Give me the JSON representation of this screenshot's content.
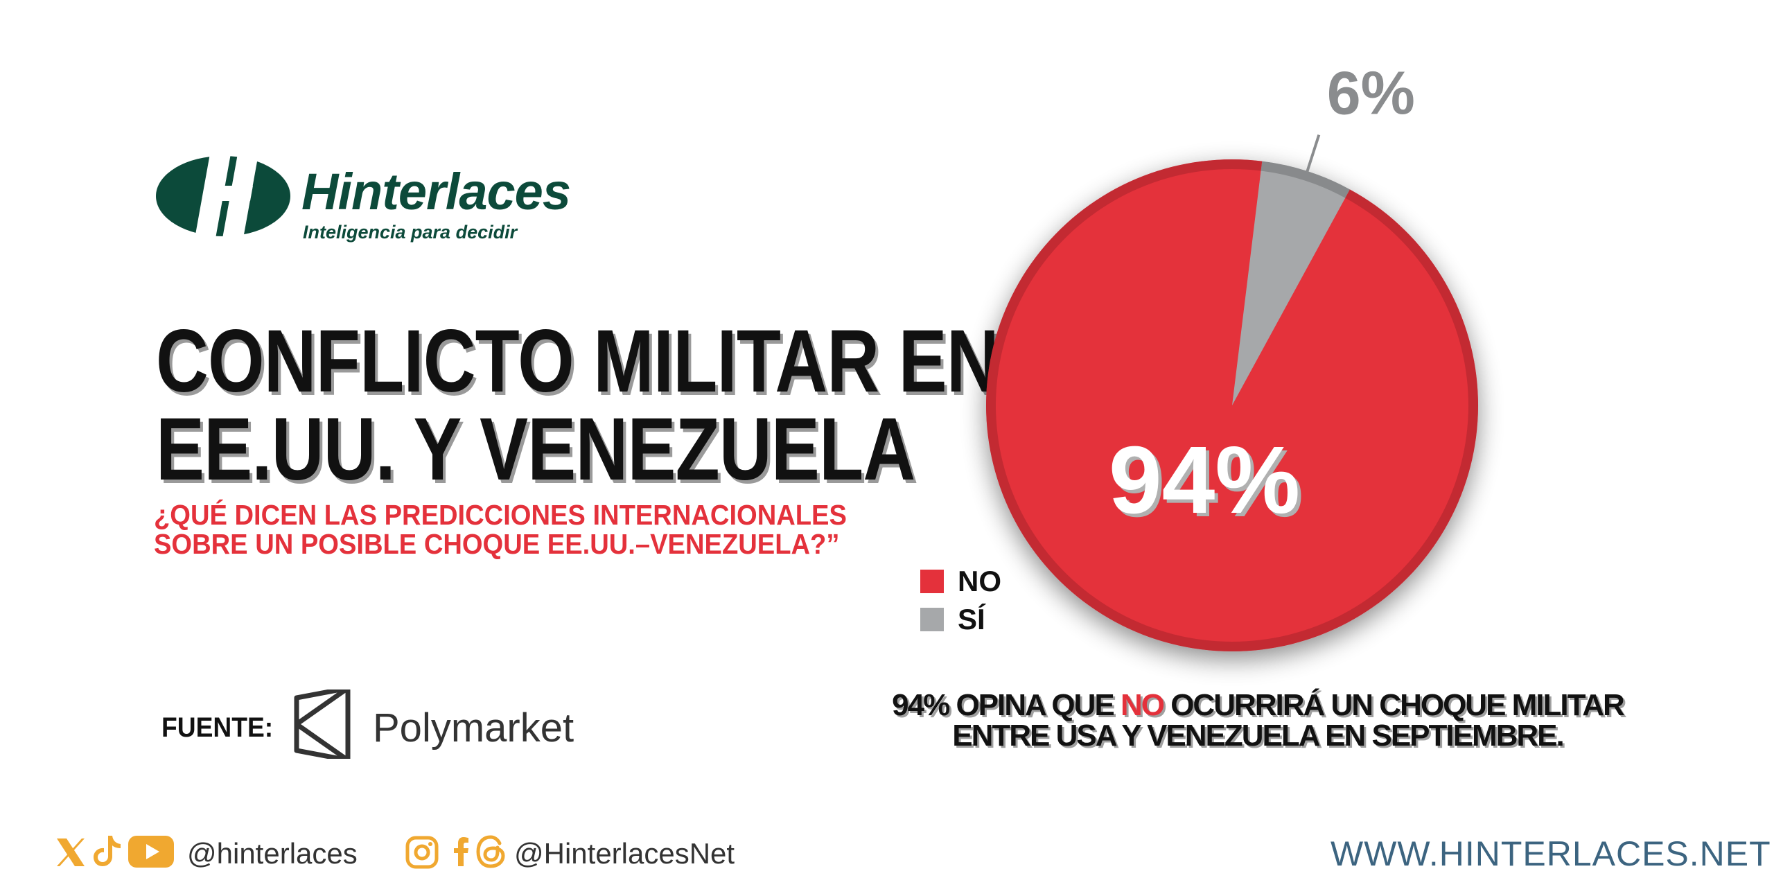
{
  "brand": {
    "name": "Hinterlaces",
    "tagline": "Inteligencia para decidir"
  },
  "headline": {
    "line1": "CONFLICTO MILITAR ENTRE",
    "line2": "EE.UU. Y VENEZUELA"
  },
  "subheadline": {
    "line1": "¿QUÉ DICEN LAS PREDICCIONES INTERNACIONALES",
    "line2": "SOBRE UN POSIBLE CHOQUE EE.UU.–VENEZUELA?”"
  },
  "source": {
    "label": "FUENTE:",
    "name": "Polymarket"
  },
  "chart_data": {
    "type": "pie",
    "title": "",
    "categories": [
      "NO",
      "SÍ"
    ],
    "values": [
      94,
      6
    ],
    "data_labels": [
      "94%",
      "6%"
    ],
    "colors": [
      "#e4313b",
      "#a6a8aa"
    ],
    "legend_placement": "left"
  },
  "caption": {
    "line1_before": "94% OPINA QUE ",
    "line1_highlight": "NO",
    "line1_after": " OCURRIRÁ UN CHOQUE MILITAR",
    "line2": "ENTRE USA Y VENEZUELA EN SEPTIEMBRE."
  },
  "footer": {
    "handle1": "@hinterlaces",
    "handle2": "@HinterlacesNet",
    "website": "WWW.HINTERLACES.NET",
    "icons1": [
      "x-icon",
      "tiktok-icon",
      "youtube-icon"
    ],
    "icons2": [
      "instagram-icon",
      "facebook-icon",
      "threads-icon"
    ]
  },
  "colors": {
    "brand_green": "#0c4a3a",
    "accent_red": "#e4313b",
    "icon_orange": "#f0a830",
    "website_blue": "#3c6480"
  }
}
